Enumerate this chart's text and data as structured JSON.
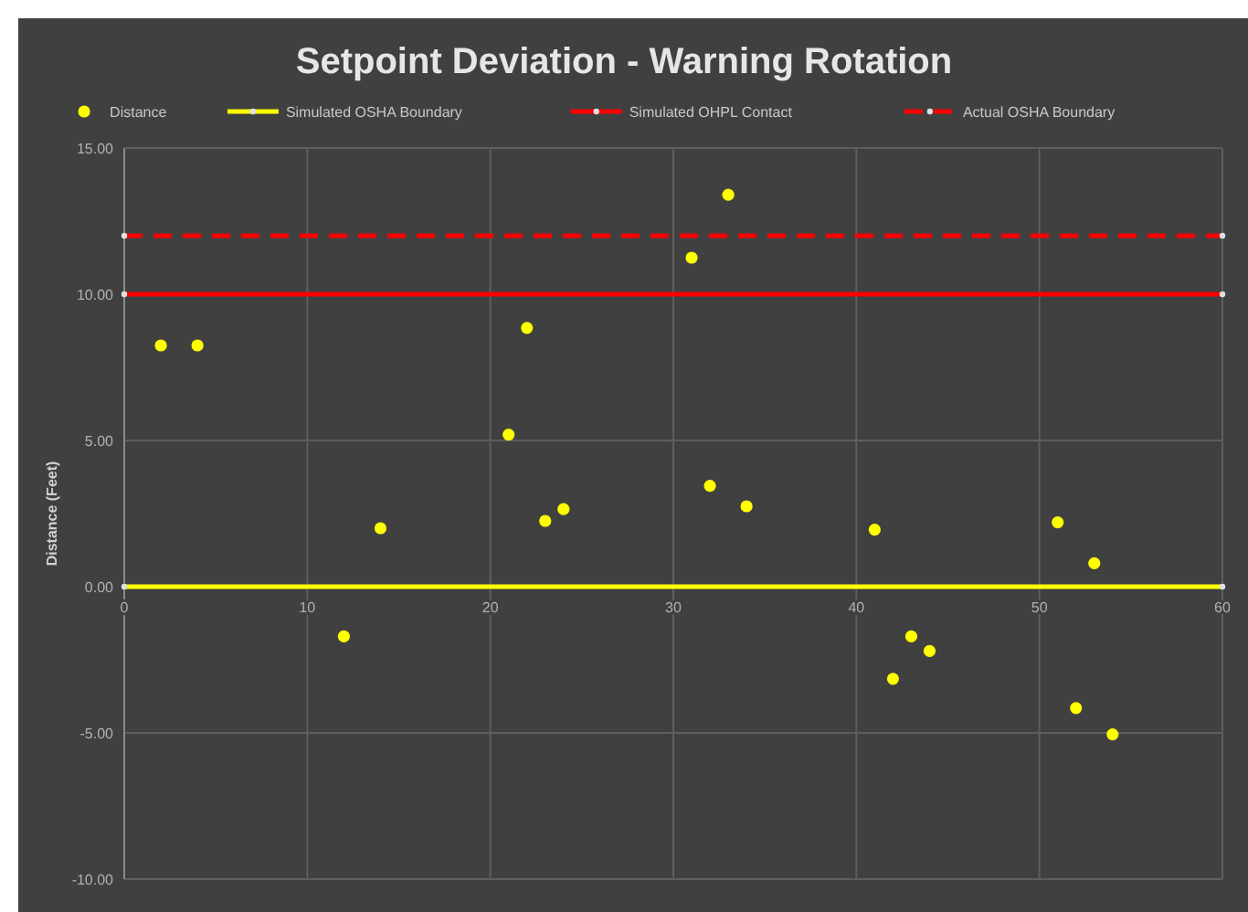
{
  "chart_data": {
    "type": "scatter",
    "title": "Setpoint Deviation - Warning Rotation",
    "ylabel": "Distance (Feet)",
    "xlim": [
      0,
      60
    ],
    "xticks": [
      0,
      10,
      20,
      30,
      40,
      50,
      60
    ],
    "ylim": [
      -10,
      15
    ],
    "yticks": [
      {
        "value": -10,
        "label": "-10.00"
      },
      {
        "value": -5,
        "label": "-5.00"
      },
      {
        "value": 0,
        "label": "0.00"
      },
      {
        "value": 5,
        "label": "5.00"
      },
      {
        "value": 10,
        "label": "10.00"
      },
      {
        "value": 15,
        "label": "15.00"
      }
    ],
    "grid": true,
    "legend": "top",
    "marker": "circle",
    "series": [
      {
        "name": "Distance",
        "color": "#ffff00",
        "x": [
          2,
          4,
          12,
          14,
          21,
          22,
          23,
          24,
          31,
          32,
          33,
          34,
          41,
          42,
          43,
          44,
          51,
          52,
          53,
          54
        ],
        "values": [
          8.25,
          8.25,
          -1.7,
          2.0,
          5.2,
          8.85,
          2.25,
          2.65,
          11.25,
          3.45,
          13.4,
          2.75,
          1.95,
          -3.15,
          -1.7,
          -2.2,
          2.2,
          -4.15,
          0.8,
          -5.05
        ]
      },
      {
        "name": "Simulated OSHA Boundary",
        "type": "line",
        "color": "#ffff00",
        "line_style": "solid",
        "x": [
          0,
          60
        ],
        "values": [
          0,
          0
        ]
      },
      {
        "name": "Simulated OHPL Contact",
        "type": "line",
        "color": "#ff0000",
        "line_style": "solid",
        "x": [
          0,
          60
        ],
        "values": [
          10,
          10
        ]
      },
      {
        "name": "Actual OSHA Boundary",
        "type": "line",
        "color": "#ff0000",
        "line_style": "dashed",
        "x": [
          0,
          60
        ],
        "values": [
          12,
          12
        ]
      }
    ]
  }
}
